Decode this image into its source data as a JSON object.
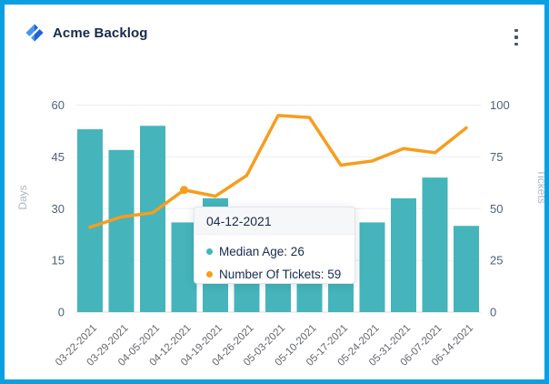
{
  "window": {
    "border_color": "#0A9FE1",
    "background": "#FFFFFF"
  },
  "header": {
    "title": "Acme Backlog",
    "logo_icon": "jira-diamond-logo",
    "logo_colors": {
      "left": "#4795F2",
      "right": "#1D63D8"
    },
    "menu_icon": "kebab-menu"
  },
  "chart_data": {
    "type": "bar",
    "subtype": "combo-bar-line-dual-axis",
    "categories": [
      "03-22-2021",
      "03-29-2021",
      "04-05-2021",
      "04-12-2021",
      "04-19-2021",
      "04-26-2021",
      "05-03-2021",
      "05-10-2021",
      "05-17-2021",
      "05-24-2021",
      "05-31-2021",
      "06-07-2021",
      "06-14-2021"
    ],
    "series": [
      {
        "name": "Median Age",
        "type": "bar",
        "axis": "left",
        "color": "#45B5BB",
        "values": [
          53,
          47,
          54,
          26,
          33,
          20,
          18,
          19,
          21,
          26,
          33,
          39,
          25
        ]
      },
      {
        "name": "Number Of Tickets",
        "type": "line",
        "axis": "right",
        "color": "#F79D1D",
        "values": [
          41,
          46,
          48,
          59,
          56,
          66,
          95,
          94,
          71,
          73,
          79,
          77,
          89
        ],
        "marker_index": 3
      }
    ],
    "left_axis": {
      "label": "Days",
      "ticks": [
        0,
        15,
        30,
        45,
        60
      ],
      "min": 0,
      "max": 60
    },
    "right_axis": {
      "label": "Tickets",
      "ticks": [
        0,
        25,
        50,
        75,
        100
      ],
      "min": 0,
      "max": 100
    },
    "grid": true,
    "grid_color": "#ECEDEF",
    "axis_line_color": "#D9DDE2",
    "tick_label_color": "#505F79",
    "axis_name_color": "#AEB6C2",
    "x_label_color": "#63666B",
    "legend_position": "none"
  },
  "tooltip": {
    "date": "04-12-2021",
    "items": [
      {
        "text": "Median Age: 26",
        "color": "#45B5BB"
      },
      {
        "text": "Number Of Tickets: 59",
        "color": "#F79D1D"
      }
    ]
  }
}
